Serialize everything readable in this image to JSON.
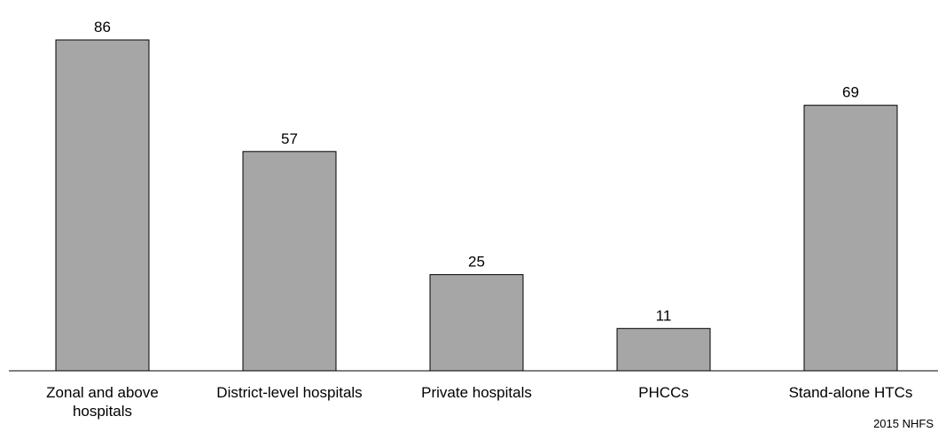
{
  "chart_data": {
    "type": "bar",
    "categories": [
      [
        "Zonal and above",
        "hospitals"
      ],
      [
        "District-level hospitals"
      ],
      [
        "Private hospitals"
      ],
      [
        "PHCCs"
      ],
      [
        "Stand-alone HTCs"
      ]
    ],
    "values": [
      86,
      57,
      25,
      11,
      69
    ],
    "ylim": [
      0,
      86
    ],
    "grid": false,
    "bar_color": "#a6a6a6",
    "bar_stroke": "#000000",
    "axis_color": "#000000"
  },
  "source": "2015 NHFS"
}
